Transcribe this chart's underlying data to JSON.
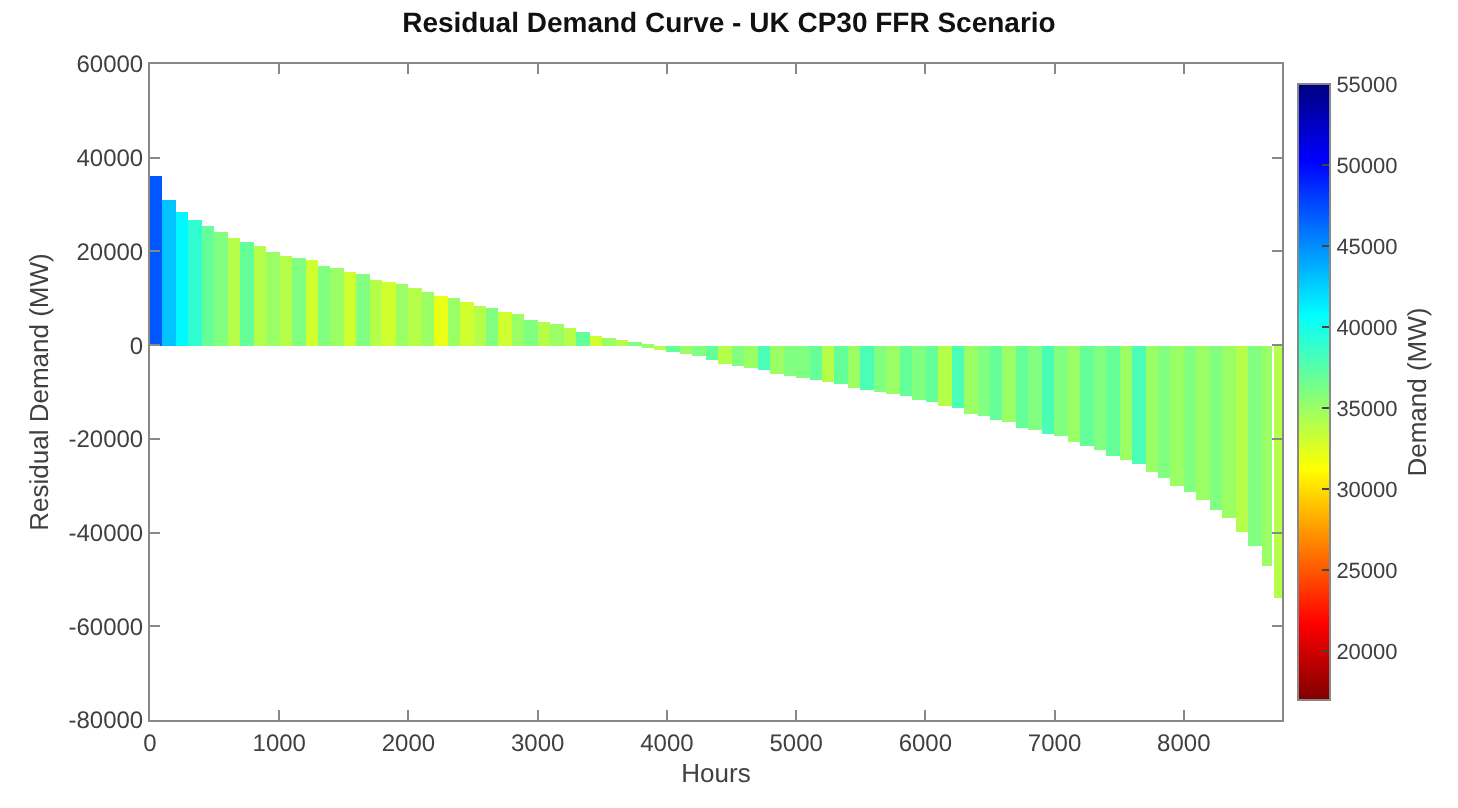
{
  "chart_data": {
    "type": "bar",
    "title": "Residual Demand Curve - UK CP30 FFR Scenario",
    "xlabel": "Hours",
    "ylabel": "Residual Demand (MW)",
    "clabel": "Demand (MW)",
    "x": [
      50,
      150,
      250,
      350,
      450,
      550,
      650,
      750,
      850,
      950,
      1050,
      1150,
      1250,
      1350,
      1450,
      1550,
      1650,
      1750,
      1850,
      1950,
      2050,
      2150,
      2250,
      2350,
      2450,
      2550,
      2650,
      2750,
      2850,
      2950,
      3050,
      3150,
      3250,
      3350,
      3450,
      3550,
      3650,
      3750,
      3850,
      3950,
      4050,
      4150,
      4250,
      4350,
      4450,
      4550,
      4650,
      4750,
      4850,
      4950,
      5050,
      5150,
      5250,
      5350,
      5450,
      5550,
      5650,
      5750,
      5850,
      5950,
      6050,
      6150,
      6250,
      6350,
      6450,
      6550,
      6650,
      6750,
      6850,
      6950,
      7050,
      7150,
      7250,
      7350,
      7450,
      7550,
      7650,
      7750,
      7850,
      7950,
      8050,
      8150,
      8250,
      8350,
      8450,
      8550,
      8650,
      8730
    ],
    "values": [
      36000,
      31000,
      28500,
      26500,
      25500,
      24000,
      23000,
      22000,
      21000,
      20000,
      19000,
      18500,
      18000,
      17000,
      16500,
      15500,
      15000,
      14000,
      13500,
      13000,
      12000,
      11500,
      10500,
      10000,
      9000,
      8500,
      8000,
      7000,
      6500,
      5500,
      5000,
      4500,
      3500,
      3000,
      2000,
      1500,
      1000,
      500,
      -500,
      -1000,
      -1500,
      -2000,
      -2500,
      -3000,
      -4000,
      -4500,
      -5000,
      -5500,
      -6000,
      -6500,
      -7000,
      -7500,
      -8000,
      -8500,
      -9000,
      -9500,
      -10000,
      -10500,
      -11000,
      -11500,
      -12000,
      -13000,
      -13500,
      -14500,
      -15000,
      -16000,
      -16500,
      -17500,
      -18000,
      -19000,
      -19500,
      -20500,
      -21500,
      -22500,
      -23500,
      -24500,
      -25500,
      -27000,
      -28500,
      -30000,
      -31500,
      -33000,
      -35000,
      -37000,
      -40000,
      -43000,
      -47000,
      -54000
    ],
    "cvalues": [
      47000,
      43000,
      41000,
      39000,
      37000,
      36000,
      34000,
      37000,
      34000,
      35000,
      34000,
      36000,
      33000,
      36000,
      35000,
      33000,
      36000,
      34000,
      33000,
      35000,
      34000,
      35000,
      32000,
      35000,
      33000,
      34000,
      36000,
      33000,
      35000,
      36000,
      34000,
      35000,
      34000,
      37000,
      33000,
      35000,
      34000,
      36000,
      35000,
      34000,
      37000,
      35000,
      36000,
      37000,
      34000,
      36000,
      35000,
      38000,
      35000,
      36000,
      36000,
      37000,
      34000,
      37000,
      35000,
      38000,
      36000,
      35000,
      37000,
      36000,
      37000,
      34000,
      38000,
      35000,
      36000,
      37000,
      35000,
      37000,
      36000,
      38000,
      36000,
      35000,
      37000,
      36000,
      37000,
      35000,
      38000,
      35000,
      36000,
      35000,
      36000,
      35000,
      36000,
      35000,
      34000,
      36000,
      35000,
      34000
    ],
    "xlim": [
      0,
      8760
    ],
    "ylim": [
      -80000,
      60000
    ],
    "xticks": [
      0,
      1000,
      2000,
      3000,
      4000,
      5000,
      6000,
      7000,
      8000
    ],
    "yticks": [
      -80000,
      -60000,
      -40000,
      -20000,
      0,
      20000,
      40000,
      60000
    ],
    "clim": [
      17000,
      55000
    ],
    "cticks": [
      20000,
      25000,
      30000,
      35000,
      40000,
      45000,
      50000,
      55000
    ],
    "legend": false
  }
}
